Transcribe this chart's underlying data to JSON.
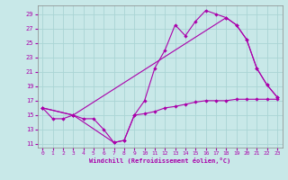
{
  "xlabel": "Windchill (Refroidissement éolien,°C)",
  "background_color": "#c8e8e8",
  "grid_color": "#aad4d4",
  "line_color": "#aa00aa",
  "xlim": [
    -0.5,
    23.5
  ],
  "ylim": [
    10.5,
    30.2
  ],
  "yticks": [
    11,
    13,
    15,
    17,
    19,
    21,
    23,
    25,
    27,
    29
  ],
  "xticks": [
    0,
    1,
    2,
    3,
    4,
    5,
    6,
    7,
    8,
    9,
    10,
    11,
    12,
    13,
    14,
    15,
    16,
    17,
    18,
    19,
    20,
    21,
    22,
    23
  ],
  "line1_x": [
    0,
    1,
    2,
    3,
    4,
    5,
    6,
    7,
    8,
    9,
    10,
    11,
    12,
    13,
    14,
    15,
    16,
    17,
    18,
    19,
    20,
    21,
    22,
    23
  ],
  "line1_y": [
    16,
    14.5,
    14.5,
    15,
    14.5,
    14.5,
    13,
    11.2,
    11.5,
    15,
    15.2,
    15.5,
    16,
    16.2,
    16.5,
    16.8,
    17,
    17,
    17,
    17.2,
    17.2,
    17.2,
    17.2,
    17.2
  ],
  "line2_x": [
    0,
    3,
    7,
    8,
    9,
    10,
    11,
    12,
    13,
    14,
    15,
    16,
    17,
    18,
    19,
    20,
    21,
    22,
    23
  ],
  "line2_y": [
    16,
    15,
    11.2,
    11.5,
    15,
    17,
    21.5,
    24,
    27.5,
    26,
    28,
    29.5,
    29,
    28.5,
    27.5,
    25.5,
    21.5,
    19.2,
    17.5
  ],
  "line3_x": [
    0,
    3,
    18,
    19,
    20,
    21,
    22,
    23
  ],
  "line3_y": [
    16,
    15,
    28.5,
    27.5,
    25.5,
    21.5,
    19.2,
    17.5
  ]
}
